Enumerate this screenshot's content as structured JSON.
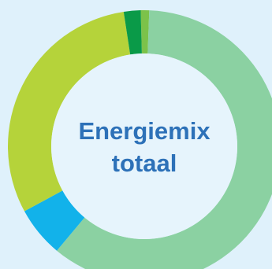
{
  "chart_data": {
    "type": "pie",
    "title_lines": [
      "Energiemix",
      "totaal"
    ],
    "slices": [
      {
        "value": 1.0,
        "color": "#7cc24a"
      },
      {
        "value": 60.5,
        "color": "#8bd1a2"
      },
      {
        "value": 6.0,
        "color": "#12b2ea"
      },
      {
        "value": 30.5,
        "color": "#b5d33a"
      },
      {
        "value": 2.0,
        "color": "#0a9a48"
      }
    ],
    "background_color": "#dff1fb",
    "hole_color": "#e6f4fc"
  }
}
